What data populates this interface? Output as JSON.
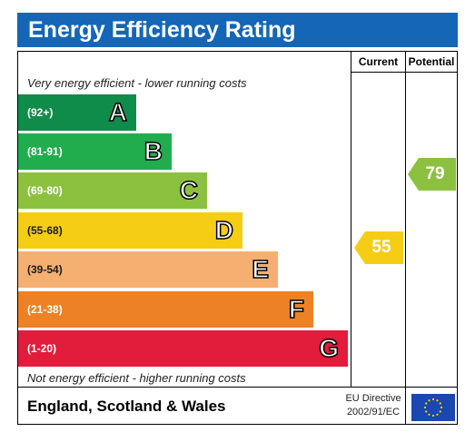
{
  "title": "Energy Efficiency Rating",
  "columns": {
    "current": "Current",
    "potential": "Potential"
  },
  "top_caption": "Very energy efficient - lower running costs",
  "bottom_caption": "Not energy efficient - higher running costs",
  "bands": [
    {
      "range": "(92+)",
      "letter": "A",
      "color": "#0f8c4a"
    },
    {
      "range": "(81-91)",
      "letter": "B",
      "color": "#21ad4e"
    },
    {
      "range": "(69-80)",
      "letter": "C",
      "color": "#8cc13f"
    },
    {
      "range": "(55-68)",
      "letter": "D",
      "color": "#f6cd15"
    },
    {
      "range": "(39-54)",
      "letter": "E",
      "color": "#f5b071"
    },
    {
      "range": "(21-38)",
      "letter": "F",
      "color": "#ec8225"
    },
    {
      "range": "(1-20)",
      "letter": "G",
      "color": "#e21c3b"
    }
  ],
  "current": {
    "value": "55",
    "band": "D",
    "color": "#f6cd15"
  },
  "potential": {
    "value": "79",
    "band": "C",
    "color": "#8cc13f"
  },
  "footer": {
    "region": "England, Scotland & Wales",
    "directive_line1": "EU Directive",
    "directive_line2": "2002/91/EC",
    "flag": "eu-flag-icon"
  },
  "colors": {
    "header": "#1566b6"
  }
}
